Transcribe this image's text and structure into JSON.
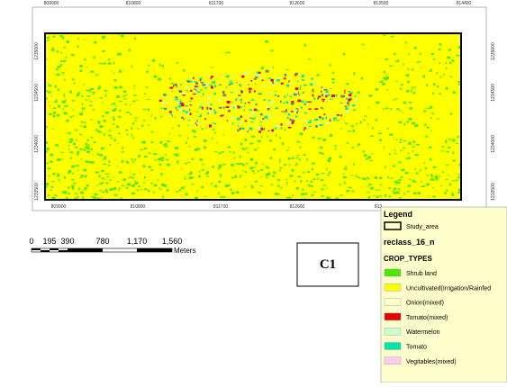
{
  "map": {
    "top_ticks": [
      "809900",
      "810800",
      "811700",
      "812600",
      "813500",
      "814400"
    ],
    "bottom_ticks": [
      "809900",
      "810800",
      "811700",
      "812600",
      "813"
    ],
    "left_ticks": [
      "1235000",
      "1234500",
      "1234000",
      "1233500"
    ],
    "right_ticks": [
      "1235000",
      "1234500",
      "1234000",
      "1233500"
    ]
  },
  "scale_bar": {
    "labels": [
      "0",
      "195",
      "390",
      "780",
      "1,170",
      "1,560"
    ],
    "unit": "Meters"
  },
  "panel_label": "C1",
  "legend": {
    "title": "Legend",
    "study_area": "Study_area",
    "layer": "reclass_16_n",
    "field": "CROP_TYPES",
    "classes": [
      {
        "label": "Shrub land",
        "color": "#4ce600"
      },
      {
        "label": "Uncultivated(Irrigation/Rainfed",
        "color": "#ffff00"
      },
      {
        "label": "Onion(mixed)",
        "color": "#ffffcc"
      },
      {
        "label": "Tomato(mixed)",
        "color": "#e60000"
      },
      {
        "label": "Watermelon",
        "color": "#ccffcc"
      },
      {
        "label": "Tomato",
        "color": "#00e6a9"
      },
      {
        "label": "Vegitables(mixed)",
        "color": "#ffccee"
      }
    ]
  }
}
